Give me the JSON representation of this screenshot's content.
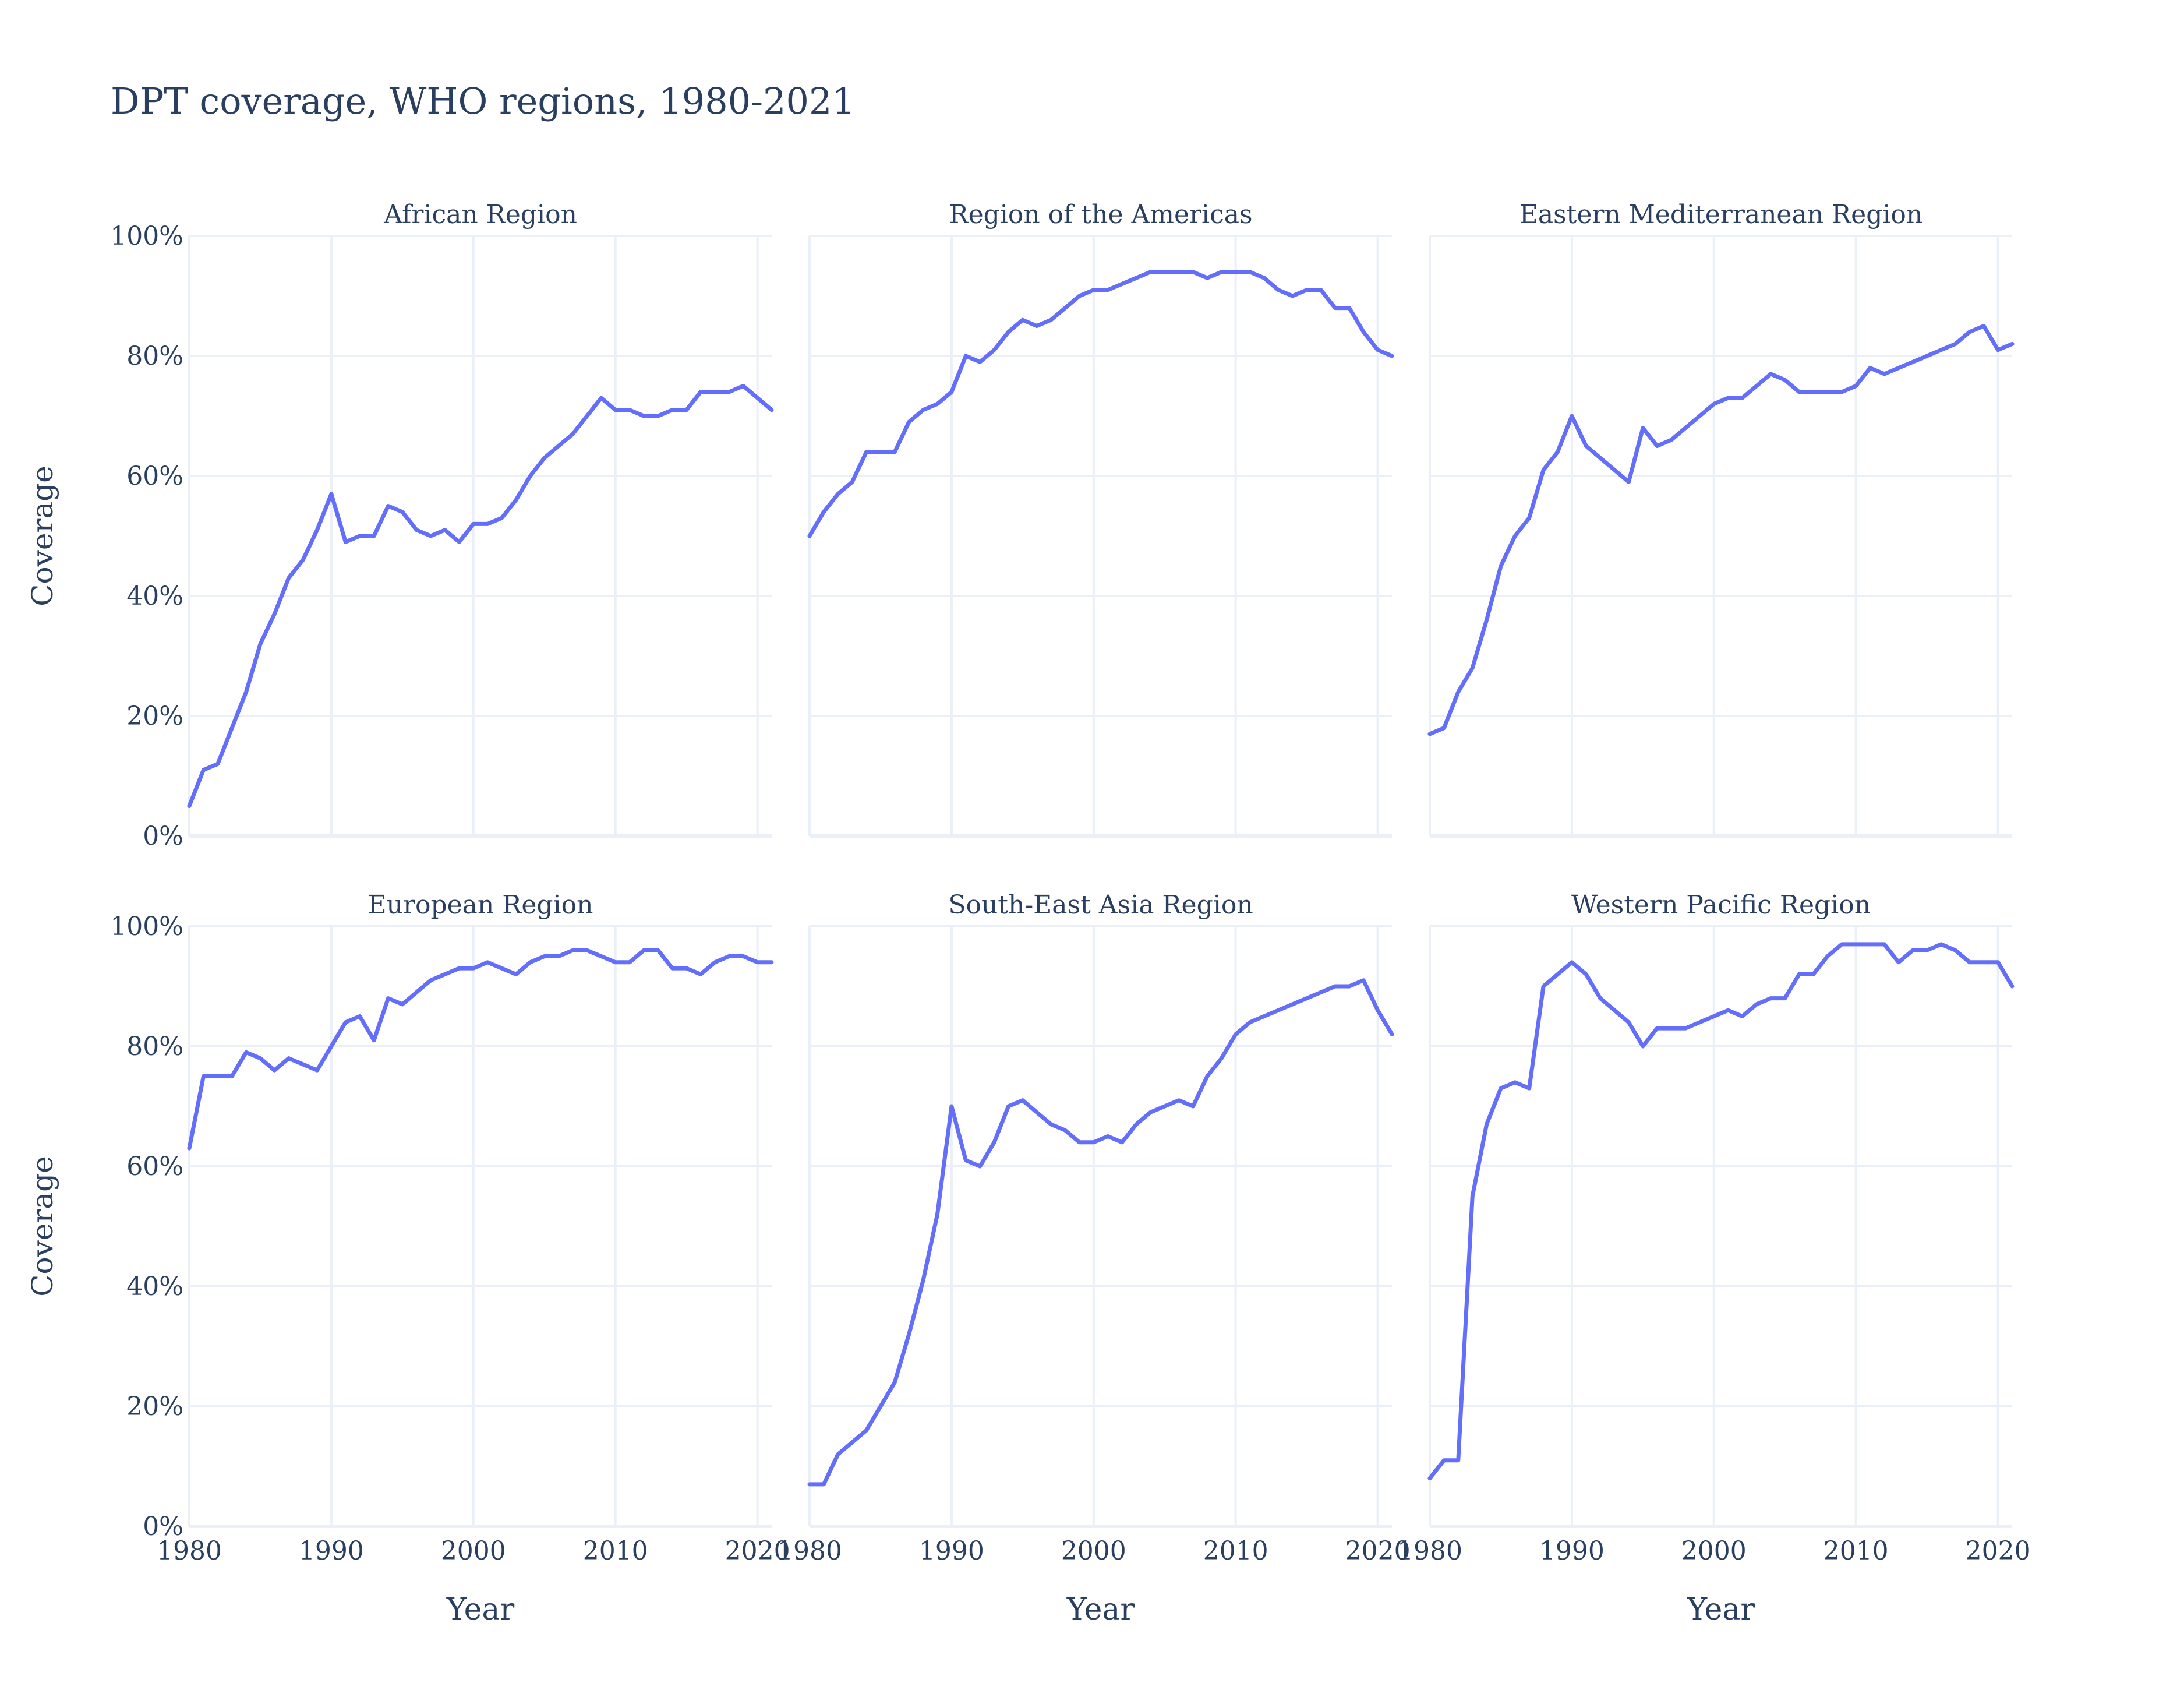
{
  "chart_data": {
    "type": "line",
    "title": "DPT coverage, WHO regions, 1980-2021",
    "xlabel": "Year",
    "ylabel": "Coverage",
    "xlim": [
      1980,
      2021
    ],
    "ylim": [
      0,
      100
    ],
    "x_ticks": [
      "1980",
      "1990",
      "2000",
      "2010",
      "2020"
    ],
    "y_ticks": [
      "0%",
      "20%",
      "40%",
      "60%",
      "80%",
      "100%"
    ],
    "grid": true,
    "line_color": "#636efa",
    "grid_color": "#ebf0f8",
    "text_color": "#2a3f5f",
    "years": [
      1980,
      1981,
      1982,
      1983,
      1984,
      1985,
      1986,
      1987,
      1988,
      1989,
      1990,
      1991,
      1992,
      1993,
      1994,
      1995,
      1996,
      1997,
      1998,
      1999,
      2000,
      2001,
      2002,
      2003,
      2004,
      2005,
      2006,
      2007,
      2008,
      2009,
      2010,
      2011,
      2012,
      2013,
      2014,
      2015,
      2016,
      2017,
      2018,
      2019,
      2020,
      2021
    ],
    "panels": [
      {
        "name": "African Region",
        "values": [
          5,
          11,
          12,
          18,
          24,
          32,
          37,
          43,
          46,
          51,
          57,
          49,
          50,
          50,
          55,
          54,
          51,
          50,
          51,
          49,
          52,
          52,
          53,
          56,
          60,
          63,
          65,
          67,
          70,
          73,
          71,
          71,
          70,
          70,
          71,
          71,
          74,
          74,
          74,
          75,
          73,
          71
        ]
      },
      {
        "name": "Region of the Americas",
        "values": [
          50,
          54,
          57,
          59,
          64,
          64,
          64,
          69,
          71,
          72,
          74,
          80,
          79,
          81,
          84,
          86,
          85,
          86,
          88,
          90,
          91,
          91,
          92,
          93,
          94,
          94,
          94,
          94,
          93,
          94,
          94,
          94,
          93,
          91,
          90,
          91,
          91,
          88,
          88,
          84,
          81,
          80
        ]
      },
      {
        "name": "Eastern Mediterranean Region",
        "values": [
          17,
          18,
          24,
          28,
          36,
          45,
          50,
          53,
          61,
          64,
          70,
          65,
          63,
          61,
          59,
          68,
          65,
          66,
          68,
          70,
          72,
          73,
          73,
          75,
          77,
          76,
          74,
          74,
          74,
          74,
          75,
          78,
          77,
          78,
          79,
          80,
          81,
          82,
          84,
          85,
          81,
          82
        ]
      },
      {
        "name": "European Region",
        "values": [
          63,
          75,
          75,
          75,
          79,
          78,
          76,
          78,
          77,
          76,
          80,
          84,
          85,
          81,
          88,
          87,
          89,
          91,
          92,
          93,
          93,
          94,
          93,
          92,
          94,
          95,
          95,
          96,
          96,
          95,
          94,
          94,
          96,
          96,
          93,
          93,
          92,
          94,
          95,
          95,
          94,
          94
        ]
      },
      {
        "name": "South-East Asia Region",
        "values": [
          7,
          7,
          12,
          14,
          16,
          20,
          24,
          32,
          41,
          52,
          70,
          61,
          60,
          64,
          70,
          71,
          69,
          67,
          66,
          64,
          64,
          65,
          64,
          67,
          69,
          70,
          71,
          70,
          75,
          78,
          82,
          84,
          85,
          86,
          87,
          88,
          89,
          90,
          90,
          91,
          86,
          82
        ]
      },
      {
        "name": "Western Pacific Region",
        "values": [
          8,
          11,
          11,
          55,
          67,
          73,
          74,
          73,
          90,
          92,
          94,
          92,
          88,
          86,
          84,
          80,
          83,
          83,
          83,
          84,
          85,
          86,
          85,
          87,
          88,
          88,
          92,
          92,
          95,
          97,
          97,
          97,
          97,
          94,
          96,
          96,
          97,
          96,
          94,
          94,
          94,
          90
        ]
      }
    ]
  }
}
